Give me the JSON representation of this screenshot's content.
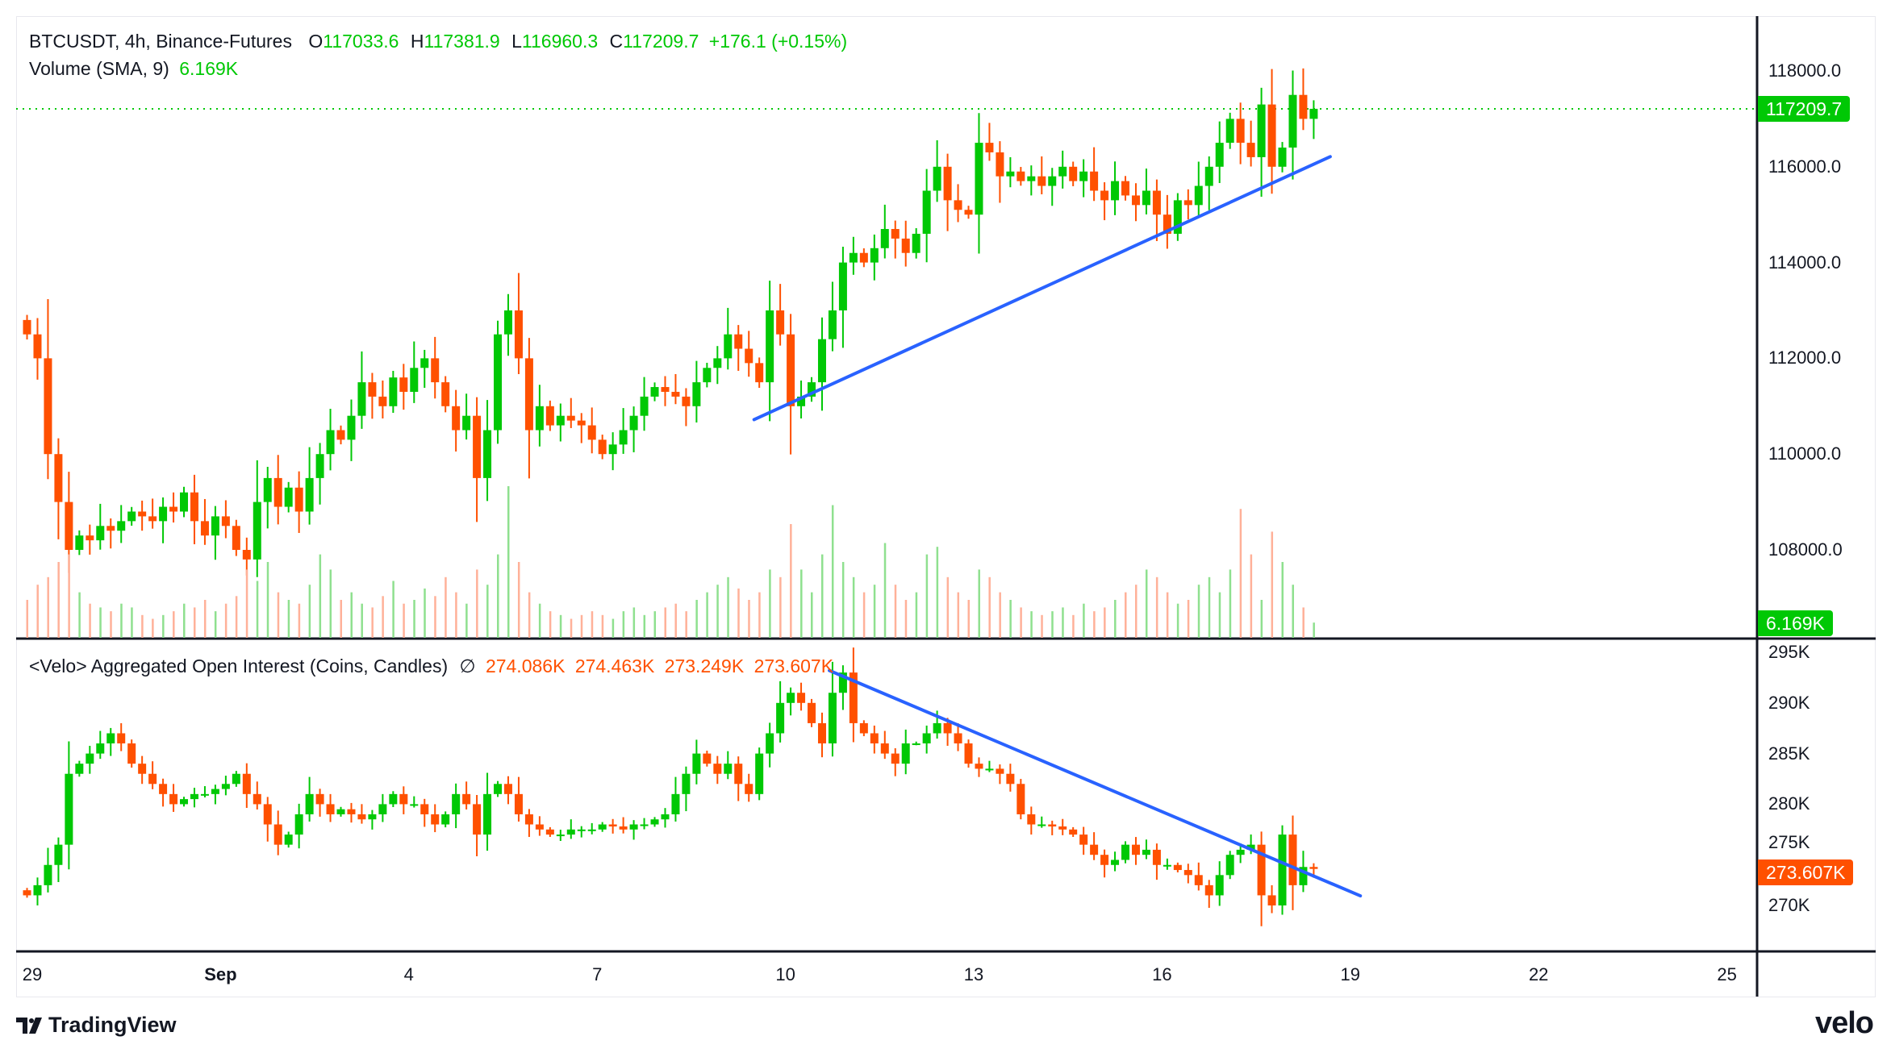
{
  "header": {
    "symbol": "BTCUSDT, 4h, Binance-Futures",
    "o_label": "O",
    "o": "117033.6",
    "h_label": "H",
    "h": "117381.9",
    "l_label": "L",
    "l": "116960.3",
    "c_label": "C",
    "c": "117209.7",
    "change": "+176.1 (+0.15%)",
    "volume_label": "Volume (SMA, 9)",
    "volume_value": "6.169K"
  },
  "oi_legend": {
    "title": "<Velo> Aggregated Open Interest (Coins, Candles)",
    "hidden_icon": "∅",
    "o": "274.086K",
    "h": "274.463K",
    "l": "273.249K",
    "c": "273.607K"
  },
  "price_axis": [
    "118000.0",
    "116000.0",
    "114000.0",
    "112000.0",
    "110000.0",
    "108000.0"
  ],
  "price_axis_values": [
    118000,
    116000,
    114000,
    112000,
    110000,
    108000
  ],
  "oi_axis": [
    "295K",
    "290K",
    "285K",
    "280K",
    "275K",
    "270K"
  ],
  "oi_axis_values": [
    295,
    290,
    285,
    280,
    275,
    270
  ],
  "time_axis": [
    {
      "label": "29",
      "day": 0
    },
    {
      "label": "Sep",
      "day": 3
    },
    {
      "label": "4",
      "day": 6
    },
    {
      "label": "7",
      "day": 9
    },
    {
      "label": "10",
      "day": 12
    },
    {
      "label": "13",
      "day": 15
    },
    {
      "label": "16",
      "day": 18
    },
    {
      "label": "19",
      "day": 21
    },
    {
      "label": "22",
      "day": 24
    },
    {
      "label": "25",
      "day": 27
    }
  ],
  "last_price_tag": "117209.7",
  "last_price": 117209.7,
  "volume_tag": "6.169K",
  "oi_tag": "273.607K",
  "colors": {
    "up": "#00c805",
    "down": "#ff5000",
    "trendline": "#2962ff",
    "up_volume": "#8fe08f",
    "down_volume": "#ffb199"
  },
  "chart_data": [
    {
      "type": "candlestick",
      "interval": "4h",
      "first_candle": "Aug 28 20:00",
      "close": [
        112500,
        112000,
        110000,
        109000,
        108000,
        108300,
        108200,
        108500,
        108400,
        108600,
        108800,
        108700,
        108600,
        108900,
        108800,
        109200,
        108600,
        108300,
        108700,
        108500,
        108000,
        107800,
        109000,
        109500,
        108900,
        109300,
        108800,
        109500,
        110000,
        110500,
        110300,
        110800,
        111500,
        111200,
        111000,
        111600,
        111300,
        111800,
        112000,
        111500,
        111000,
        110500,
        110800,
        109500,
        110500,
        112500,
        113000,
        112000,
        110500,
        111000,
        110600,
        110800,
        110700,
        110600,
        110300,
        110000,
        110200,
        110500,
        110800,
        111200,
        111400,
        111300,
        111200,
        111000,
        111500,
        111800,
        112000,
        112500,
        112200,
        111900,
        111500,
        113000,
        112500,
        111000,
        111200,
        111500,
        112400,
        113000,
        114000,
        114200,
        114000,
        114300,
        114700,
        114500,
        114200,
        114600,
        115500,
        116000,
        115300,
        115100,
        115000,
        116500,
        116300,
        115800,
        115900,
        115700,
        115800,
        115600,
        115800,
        116000,
        115700,
        115900,
        115500,
        115300,
        115700,
        115400,
        115200,
        115500,
        115000,
        114600,
        115300,
        115200,
        115600,
        116000,
        116500,
        117000,
        116500,
        116200,
        117300,
        116000,
        116400,
        117500,
        117000,
        117209.7
      ],
      "volume_k": [
        10,
        14,
        16,
        20,
        22,
        12,
        9,
        8,
        7,
        9,
        8,
        6,
        5,
        6,
        7,
        9,
        8,
        10,
        7,
        9,
        11,
        18,
        15,
        20,
        12,
        10,
        9,
        14,
        22,
        18,
        10,
        12,
        9,
        8,
        11,
        15,
        9,
        10,
        13,
        11,
        16,
        12,
        9,
        18,
        14,
        22,
        40,
        20,
        12,
        9,
        7,
        6,
        5,
        6,
        7,
        6,
        5,
        7,
        8,
        6,
        7,
        8,
        9,
        7,
        10,
        12,
        14,
        16,
        13,
        10,
        12,
        18,
        16,
        30,
        18,
        12,
        22,
        35,
        20,
        16,
        12,
        14,
        25,
        14,
        10,
        12,
        22,
        24,
        16,
        12,
        10,
        18,
        16,
        12,
        10,
        8,
        7,
        6,
        7,
        8,
        6,
        9,
        7,
        8,
        10,
        12,
        14,
        18,
        16,
        12,
        9,
        10,
        14,
        16,
        12,
        18,
        34,
        22,
        10,
        28,
        20,
        14,
        8,
        4
      ],
      "ylim": [
        107000,
        119000
      ]
    },
    {
      "type": "candlestick",
      "series": "Aggregated Open Interest (K)",
      "close": [
        271,
        272,
        274,
        276,
        283,
        284,
        285,
        286,
        287,
        286,
        284,
        283,
        282,
        281,
        280,
        280.5,
        281,
        281,
        281.5,
        282,
        283,
        281,
        280,
        278,
        276,
        277,
        279,
        281,
        280,
        279,
        279.5,
        279,
        278.5,
        279,
        280,
        281,
        280,
        280,
        279,
        278,
        279,
        281,
        280,
        277,
        281,
        282,
        281,
        279,
        278,
        277.5,
        277,
        277,
        277.5,
        277.5,
        277.5,
        278,
        277.8,
        277.5,
        278,
        278,
        278.5,
        279,
        281,
        283,
        285,
        284,
        283,
        284,
        282,
        281,
        285,
        287,
        290,
        291,
        290,
        288,
        286,
        291,
        293,
        288,
        287,
        286,
        285,
        284,
        286,
        286,
        287,
        288,
        287,
        286,
        284,
        283.5,
        283.5,
        283,
        282,
        279,
        278,
        278,
        277.8,
        277.5,
        277,
        276,
        275,
        274,
        274.5,
        276,
        275,
        275.5,
        274,
        274,
        273.5,
        273,
        272,
        271,
        273,
        275,
        275.5,
        276,
        271,
        270,
        277,
        272,
        273.8,
        273.607
      ],
      "ylim": [
        267,
        296
      ]
    }
  ],
  "trendlines": [
    {
      "pane": "price",
      "from": {
        "day": 11.5,
        "value": 110720
      },
      "to": {
        "day": 20.68,
        "value": 116210
      }
    },
    {
      "pane": "oi",
      "from": {
        "day": 12.7,
        "value": 293.2
      },
      "to": {
        "day": 21.16,
        "value": 270.95
      }
    }
  ],
  "branding": {
    "left": "TradingView",
    "right": "velo"
  }
}
